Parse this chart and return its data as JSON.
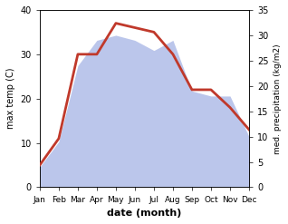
{
  "months": [
    "Jan",
    "Feb",
    "Mar",
    "Apr",
    "May",
    "Jun",
    "Jul",
    "Aug",
    "Sep",
    "Oct",
    "Nov",
    "Dec"
  ],
  "temperature": [
    5,
    11,
    30,
    30,
    37,
    36,
    35,
    30,
    22,
    22,
    18,
    13
  ],
  "precipitation": [
    4,
    9,
    24,
    29,
    30,
    29,
    27,
    29,
    19,
    18,
    18,
    10
  ],
  "temp_color": "#c0392b",
  "precip_color": "#b0bce8",
  "left_ylim": [
    0,
    40
  ],
  "right_ylim": [
    0,
    35
  ],
  "left_yticks": [
    0,
    10,
    20,
    30,
    40
  ],
  "right_yticks": [
    0,
    5,
    10,
    15,
    20,
    25,
    30,
    35
  ],
  "xlabel": "date (month)",
  "ylabel_left": "max temp (C)",
  "ylabel_right": "med. precipitation (kg/m2)",
  "background_color": "#ffffff"
}
